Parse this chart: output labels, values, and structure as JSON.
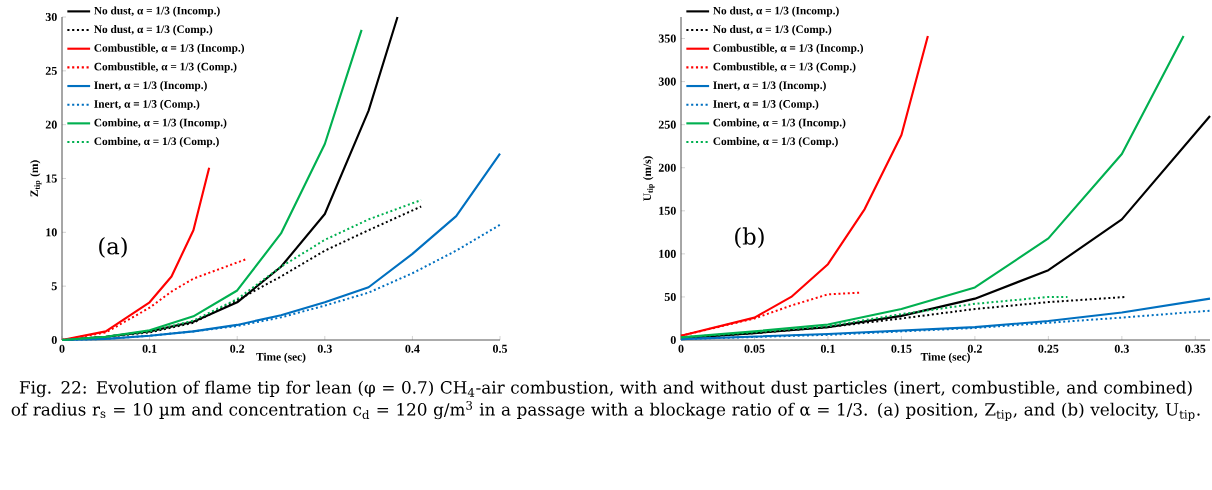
{
  "chart_data": [
    {
      "type": "line",
      "xlabel": "Time (sec)",
      "ylabel": "Z$_{tip}$ (m)",
      "xlim": [
        0,
        0.5
      ],
      "ylim": [
        0,
        30
      ],
      "xticks": [
        0,
        0.1,
        0.2,
        0.3,
        0.4,
        0.5
      ],
      "yticks": [
        0,
        5,
        10,
        15,
        20,
        25,
        30
      ],
      "legend": "top left",
      "grid": false,
      "annotations": [
        "(a)",
        "Fig. 22: Evolution of flame tip for lean (φ = 0.7) CH$_{4}$-air combustion, with and without dust particles (inert, combustible, and combined) of radius r$_{s}$ = 10 µm and concentration c$_{d}$ = 120 g/m$^{3}$ in a passage with a blockage ratio of α = 1/3. (a) position, Z$_{tip}$, and (b) velocity, U$_{tip}$."
      ],
      "series": [
        {
          "name": "No dust, α = 1/3 (Incomp.)",
          "color": "#000000",
          "line_style": "solid",
          "x": [
            0,
            0.05,
            0.1,
            0.15,
            0.2,
            0.25,
            0.3,
            0.35,
            0.383
          ],
          "values": [
            0,
            0.3,
            0.8,
            1.7,
            3.5,
            6.8,
            11.7,
            21.3,
            30
          ]
        },
        {
          "name": "No dust, α = 1/3 (Comp.)",
          "color": "#000000",
          "line_style": "dotted",
          "x": [
            0,
            0.05,
            0.1,
            0.15,
            0.2,
            0.25,
            0.3,
            0.35,
            0.41
          ],
          "values": [
            0,
            0.3,
            0.7,
            1.6,
            3.7,
            5.9,
            8.3,
            10.2,
            12.4
          ]
        },
        {
          "name": "Combustible, α = 1/3 (Incomp.)",
          "color": "#ff0000",
          "line_style": "solid",
          "x": [
            0,
            0.05,
            0.1,
            0.125,
            0.15,
            0.168
          ],
          "values": [
            0,
            0.8,
            3.5,
            5.9,
            10.2,
            16
          ]
        },
        {
          "name": "Combustible, α = 1/3 (Comp.)",
          "color": "#ff0000",
          "line_style": "dotted",
          "x": [
            0,
            0.05,
            0.1,
            0.125,
            0.15,
            0.21
          ],
          "values": [
            0,
            0.7,
            3.0,
            4.5,
            5.7,
            7.5
          ]
        },
        {
          "name": "Inert, α = 1/3 (Incomp.)",
          "color": "#0070c0",
          "line_style": "solid",
          "x": [
            0,
            0.05,
            0.1,
            0.15,
            0.2,
            0.25,
            0.3,
            0.35,
            0.4,
            0.45,
            0.5
          ],
          "values": [
            0,
            0.1,
            0.4,
            0.8,
            1.4,
            2.3,
            3.5,
            4.9,
            8.0,
            11.5,
            17.3
          ]
        },
        {
          "name": "Inert, α = 1/3 (Comp.)",
          "color": "#0070c0",
          "line_style": "dotted",
          "x": [
            0,
            0.05,
            0.1,
            0.15,
            0.2,
            0.25,
            0.3,
            0.35,
            0.4,
            0.45,
            0.5
          ],
          "values": [
            0,
            0.1,
            0.4,
            0.8,
            1.3,
            2.1,
            3.2,
            4.4,
            6.2,
            8.3,
            10.7
          ]
        },
        {
          "name": "Combine, α = 1/3 (Incomp.)",
          "color": "#00b050",
          "line_style": "solid",
          "x": [
            0,
            0.05,
            0.1,
            0.15,
            0.2,
            0.25,
            0.3,
            0.342
          ],
          "values": [
            0,
            0.3,
            0.9,
            2.2,
            4.6,
            9.9,
            18.2,
            28.8
          ]
        },
        {
          "name": "Combine, α = 1/3 (Comp.)",
          "color": "#00b050",
          "line_style": "dotted",
          "x": [
            0,
            0.05,
            0.1,
            0.15,
            0.2,
            0.25,
            0.3,
            0.35,
            0.41
          ],
          "values": [
            0,
            0.3,
            0.8,
            1.8,
            3.8,
            6.8,
            9.3,
            11.2,
            13
          ]
        }
      ]
    },
    {
      "type": "line",
      "xlabel": "Time (sec)",
      "ylabel": "U$_{tip}$ (m/s)",
      "xlim": [
        0,
        0.36
      ],
      "ylim": [
        0,
        375
      ],
      "xticks": [
        0,
        0.05,
        0.1,
        0.15,
        0.2,
        0.25,
        0.3,
        0.35
      ],
      "yticks": [
        0,
        50,
        100,
        150,
        200,
        250,
        300,
        350
      ],
      "legend": "top left",
      "grid": false,
      "annotations": [
        "(b)"
      ],
      "series": [
        {
          "name": "No dust, α = 1/3 (Incomp.)",
          "color": "#000000",
          "line_style": "solid",
          "x": [
            0,
            0.05,
            0.1,
            0.15,
            0.2,
            0.25,
            0.3,
            0.36
          ],
          "values": [
            2,
            8,
            15,
            28,
            48,
            81,
            140,
            260
          ]
        },
        {
          "name": "No dust, α = 1/3 (Comp.)",
          "color": "#000000",
          "line_style": "dotted",
          "x": [
            0,
            0.05,
            0.1,
            0.15,
            0.2,
            0.25,
            0.303
          ],
          "values": [
            2,
            8,
            15,
            25,
            36,
            44,
            50
          ]
        },
        {
          "name": "Combustible, α = 1/3 (Incomp.)",
          "color": "#ff0000",
          "line_style": "solid",
          "x": [
            0,
            0.05,
            0.075,
            0.1,
            0.125,
            0.15,
            0.168
          ],
          "values": [
            5,
            26,
            50,
            88,
            152,
            238,
            353
          ]
        },
        {
          "name": "Combustible, α = 1/3 (Comp.)",
          "color": "#ff0000",
          "line_style": "dotted",
          "x": [
            0,
            0.05,
            0.075,
            0.1,
            0.123
          ],
          "values": [
            5,
            25,
            40,
            53,
            55
          ]
        },
        {
          "name": "Inert, α = 1/3 (Incomp.)",
          "color": "#0070c0",
          "line_style": "solid",
          "x": [
            0,
            0.1,
            0.2,
            0.25,
            0.3,
            0.36
          ],
          "values": [
            1,
            7,
            15,
            22,
            32,
            48
          ]
        },
        {
          "name": "Inert, α = 1/3 (Comp.)",
          "color": "#0070c0",
          "line_style": "dotted",
          "x": [
            0,
            0.1,
            0.2,
            0.25,
            0.3,
            0.36
          ],
          "values": [
            1,
            6,
            14,
            20,
            26,
            34
          ]
        },
        {
          "name": "Combine, α = 1/3 (Incomp.)",
          "color": "#00b050",
          "line_style": "solid",
          "x": [
            0,
            0.05,
            0.1,
            0.15,
            0.2,
            0.25,
            0.3,
            0.342
          ],
          "values": [
            3,
            10,
            18,
            36,
            61,
            118,
            216,
            353
          ]
        },
        {
          "name": "Combine, α = 1/3 (Comp.)",
          "color": "#00b050",
          "line_style": "dotted",
          "x": [
            0,
            0.05,
            0.1,
            0.15,
            0.2,
            0.25,
            0.263
          ],
          "values": [
            3,
            9,
            16,
            30,
            42,
            50,
            50
          ]
        }
      ]
    }
  ]
}
